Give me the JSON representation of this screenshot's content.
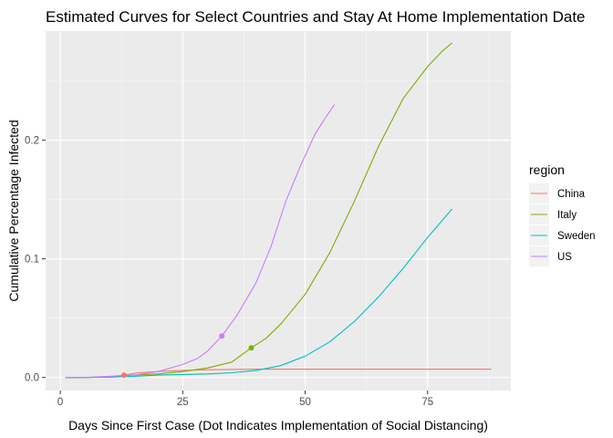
{
  "chart_data": {
    "type": "line",
    "title": "Estimated Curves for Select Countries and Stay At Home Implementation Date",
    "xlabel": "Days Since First Case (Dot Indicates Implementation of Social Distancing)",
    "ylabel": "Cumulative Percentage Infected",
    "xlim": [
      -3,
      92
    ],
    "ylim": [
      -0.011,
      0.292
    ],
    "x_ticks": [
      0,
      25,
      50,
      75
    ],
    "x_tick_labels": [
      "0",
      "25",
      "50",
      "75"
    ],
    "y_ticks": [
      0.0,
      0.1,
      0.2
    ],
    "y_tick_labels": [
      "0.0",
      "0.1",
      "0.2"
    ],
    "grid": true,
    "legend": {
      "title": "region",
      "position": "right"
    },
    "series": [
      {
        "name": "China",
        "color": "#F8766D",
        "points": [
          [
            1,
            0
          ],
          [
            5,
            0
          ],
          [
            10,
            0.0005
          ],
          [
            13,
            0.002
          ],
          [
            16,
            0.004
          ],
          [
            20,
            0.005
          ],
          [
            25,
            0.006
          ],
          [
            30,
            0.0065
          ],
          [
            35,
            0.0068
          ],
          [
            40,
            0.007
          ],
          [
            50,
            0.007
          ],
          [
            60,
            0.007
          ],
          [
            70,
            0.007
          ],
          [
            80,
            0.007
          ],
          [
            88,
            0.007
          ]
        ],
        "dot": [
          13,
          0.002
        ]
      },
      {
        "name": "Italy",
        "color": "#7CAE00",
        "points": [
          [
            1,
            0
          ],
          [
            5,
            0
          ],
          [
            10,
            0.0005
          ],
          [
            15,
            0.002
          ],
          [
            20,
            0.003
          ],
          [
            25,
            0.005
          ],
          [
            30,
            0.008
          ],
          [
            35,
            0.013
          ],
          [
            39,
            0.025
          ],
          [
            42,
            0.033
          ],
          [
            45,
            0.045
          ],
          [
            50,
            0.07
          ],
          [
            55,
            0.105
          ],
          [
            60,
            0.148
          ],
          [
            65,
            0.195
          ],
          [
            70,
            0.235
          ],
          [
            75,
            0.262
          ],
          [
            78,
            0.275
          ],
          [
            80,
            0.282
          ]
        ],
        "dot": [
          39,
          0.025
        ]
      },
      {
        "name": "Sweden",
        "color": "#00BFC4",
        "points": [
          [
            1,
            0
          ],
          [
            5,
            0
          ],
          [
            10,
            0.0003
          ],
          [
            15,
            0.001
          ],
          [
            20,
            0.002
          ],
          [
            25,
            0.0025
          ],
          [
            30,
            0.003
          ],
          [
            35,
            0.004
          ],
          [
            40,
            0.006
          ],
          [
            45,
            0.01
          ],
          [
            50,
            0.018
          ],
          [
            55,
            0.03
          ],
          [
            60,
            0.047
          ],
          [
            65,
            0.068
          ],
          [
            70,
            0.092
          ],
          [
            75,
            0.118
          ],
          [
            80,
            0.142
          ]
        ],
        "dot": null
      },
      {
        "name": "US",
        "color": "#C77CFF",
        "points": [
          [
            1,
            0
          ],
          [
            5,
            0
          ],
          [
            10,
            0.001
          ],
          [
            15,
            0.002
          ],
          [
            20,
            0.005
          ],
          [
            25,
            0.011
          ],
          [
            28,
            0.016
          ],
          [
            30,
            0.022
          ],
          [
            33,
            0.035
          ],
          [
            36,
            0.052
          ],
          [
            40,
            0.08
          ],
          [
            43,
            0.11
          ],
          [
            46,
            0.148
          ],
          [
            49,
            0.178
          ],
          [
            52,
            0.205
          ],
          [
            54,
            0.218
          ],
          [
            56,
            0.23
          ]
        ],
        "dot": [
          33,
          0.035
        ]
      }
    ]
  }
}
